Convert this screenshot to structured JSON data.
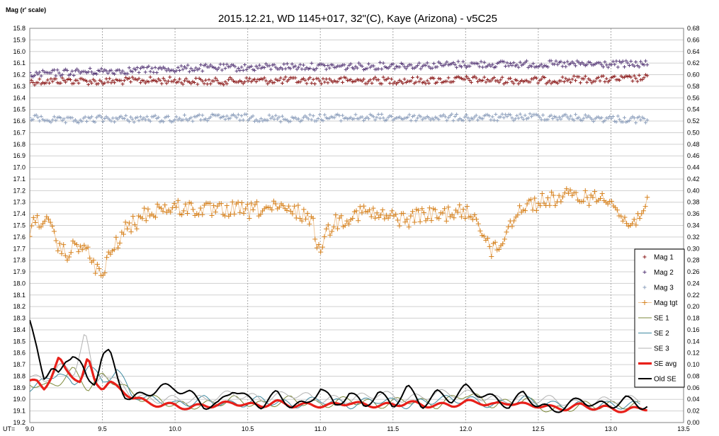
{
  "chart_data": {
    "type": "scatter",
    "title": "2015.12.21, WD 1145+017, 32\"(C), Kaye (Arizona) - v5C25",
    "ylabel_left": "Mag (r' scale)",
    "xlabel_prefix": "UT=",
    "grid": true,
    "legend_position": "right",
    "xlim": [
      9.0,
      13.5
    ],
    "ylim_left": [
      15.8,
      19.2
    ],
    "ylim_right": [
      0.0,
      0.68
    ],
    "y_left_inverted": true,
    "x_ticks": [
      "9.0",
      "9.5",
      "10.0",
      "10.5",
      "11.0",
      "11.5",
      "12.0",
      "12.5",
      "13.0",
      "13.5"
    ],
    "y_left_ticks": [
      "15.8",
      "15.9",
      "16.0",
      "16.1",
      "16.2",
      "16.3",
      "16.4",
      "16.5",
      "16.6",
      "16.7",
      "16.8",
      "16.9",
      "17.0",
      "17.1",
      "17.2",
      "17.3",
      "17.4",
      "17.5",
      "17.6",
      "17.7",
      "17.8",
      "17.9",
      "18.0",
      "18.1",
      "18.2",
      "18.3",
      "18.4",
      "18.5",
      "18.6",
      "18.7",
      "18.8",
      "18.9",
      "19.0",
      "19.1",
      "19.2"
    ],
    "y_right_ticks": [
      "0.68",
      "0.66",
      "0.64",
      "0.62",
      "0.60",
      "0.58",
      "0.56",
      "0.54",
      "0.52",
      "0.50",
      "0.48",
      "0.46",
      "0.44",
      "0.42",
      "0.40",
      "0.38",
      "0.36",
      "0.34",
      "0.32",
      "0.30",
      "0.28",
      "0.26",
      "0.24",
      "0.22",
      "0.20",
      "0.18",
      "0.16",
      "0.14",
      "0.12",
      "0.10",
      "0.08",
      "0.06",
      "0.04",
      "0.02",
      "0.00"
    ],
    "series": [
      {
        "name": "Mag 1",
        "color": "#8b1a1a",
        "kind": "markers",
        "axis": "left",
        "x": [
          9.0,
          9.25,
          9.5,
          9.75,
          10.0,
          10.25,
          10.5,
          10.75,
          11.0,
          11.25,
          11.5,
          11.75,
          12.0,
          12.25,
          12.5,
          12.75,
          13.0,
          13.25
        ],
        "y": [
          16.26,
          16.25,
          16.26,
          16.25,
          16.25,
          16.26,
          16.25,
          16.25,
          16.25,
          16.25,
          16.25,
          16.25,
          16.24,
          16.25,
          16.25,
          16.24,
          16.24,
          16.23
        ]
      },
      {
        "name": "Mag 2",
        "color": "#5a3d7a",
        "kind": "markers",
        "axis": "left",
        "x": [
          9.0,
          9.25,
          9.5,
          9.75,
          10.0,
          10.25,
          10.5,
          10.75,
          11.0,
          11.25,
          11.5,
          11.75,
          12.0,
          12.25,
          12.5,
          12.75,
          13.0,
          13.25
        ],
        "y": [
          16.2,
          16.18,
          16.17,
          16.16,
          16.15,
          16.14,
          16.14,
          16.13,
          16.13,
          16.13,
          16.12,
          16.12,
          16.11,
          16.11,
          16.11,
          16.11,
          16.11,
          16.11
        ]
      },
      {
        "name": "Mag 3",
        "color": "#8ea0bd",
        "kind": "markers",
        "axis": "left",
        "x": [
          9.0,
          9.25,
          9.5,
          9.75,
          10.0,
          10.25,
          10.5,
          10.75,
          11.0,
          11.25,
          11.5,
          11.75,
          12.0,
          12.25,
          12.5,
          12.75,
          13.0,
          13.25
        ],
        "y": [
          16.57,
          16.6,
          16.58,
          16.58,
          16.58,
          16.57,
          16.57,
          16.58,
          16.57,
          16.57,
          16.57,
          16.57,
          16.57,
          16.57,
          16.56,
          16.57,
          16.58,
          16.59
        ]
      },
      {
        "name": "Mag tgt",
        "color": "#d6821f",
        "line_color": "#f0c79a",
        "kind": "markers+line",
        "axis": "left",
        "x": [
          9.0,
          9.05,
          9.1,
          9.15,
          9.2,
          9.25,
          9.3,
          9.35,
          9.4,
          9.45,
          9.5,
          9.55,
          9.6,
          9.65,
          9.7,
          9.75,
          9.8,
          9.9,
          10.0,
          10.1,
          10.2,
          10.3,
          10.4,
          10.5,
          10.6,
          10.7,
          10.8,
          10.9,
          10.95,
          10.97,
          11.0,
          11.05,
          11.1,
          11.2,
          11.3,
          11.4,
          11.5,
          11.6,
          11.7,
          11.8,
          11.9,
          12.0,
          12.05,
          12.1,
          12.15,
          12.18,
          12.2,
          12.25,
          12.3,
          12.35,
          12.4,
          12.5,
          12.6,
          12.7,
          12.8,
          12.9,
          12.95,
          13.0,
          13.05,
          13.1,
          13.15,
          13.2,
          13.25
        ],
        "y": [
          17.55,
          17.45,
          17.45,
          17.55,
          17.7,
          17.75,
          17.7,
          17.65,
          17.75,
          17.85,
          17.95,
          17.75,
          17.65,
          17.55,
          17.5,
          17.45,
          17.4,
          17.35,
          17.35,
          17.35,
          17.37,
          17.38,
          17.36,
          17.38,
          17.35,
          17.36,
          17.38,
          17.4,
          17.5,
          17.62,
          17.68,
          17.55,
          17.47,
          17.42,
          17.38,
          17.42,
          17.43,
          17.45,
          17.4,
          17.42,
          17.38,
          17.4,
          17.4,
          17.5,
          17.62,
          17.75,
          17.7,
          17.65,
          17.5,
          17.38,
          17.33,
          17.3,
          17.27,
          17.25,
          17.25,
          17.27,
          17.24,
          17.25,
          17.4,
          17.47,
          17.5,
          17.38,
          17.28
        ]
      },
      {
        "name": "SE 1",
        "color": "#7e8a3c",
        "kind": "line",
        "axis": "right",
        "x": [
          9.0,
          9.1,
          9.2,
          9.3,
          9.4,
          9.5,
          9.6,
          9.7,
          9.8,
          9.9,
          10.0,
          10.2,
          10.4,
          10.6,
          10.8,
          11.0,
          11.2,
          11.4,
          11.6,
          11.8,
          12.0,
          12.2,
          12.4,
          12.6,
          12.8,
          13.0,
          13.2
        ],
        "y": [
          0.07,
          0.06,
          0.07,
          0.09,
          0.06,
          0.08,
          0.07,
          0.05,
          0.04,
          0.04,
          0.03,
          0.03,
          0.04,
          0.03,
          0.04,
          0.03,
          0.04,
          0.03,
          0.04,
          0.03,
          0.05,
          0.03,
          0.04,
          0.02,
          0.03,
          0.03,
          0.03
        ]
      },
      {
        "name": "SE 2",
        "color": "#3f8aa0",
        "kind": "line",
        "axis": "right",
        "x": [
          9.0,
          9.1,
          9.2,
          9.3,
          9.4,
          9.5,
          9.6,
          9.7,
          9.8,
          9.9,
          10.0,
          10.2,
          10.4,
          10.6,
          10.8,
          11.0,
          11.2,
          11.4,
          11.6,
          11.8,
          12.0,
          12.2,
          12.4,
          12.6,
          12.8,
          13.0,
          13.2
        ],
        "y": [
          0.06,
          0.07,
          0.09,
          0.06,
          0.1,
          0.07,
          0.09,
          0.05,
          0.04,
          0.04,
          0.03,
          0.04,
          0.03,
          0.04,
          0.03,
          0.04,
          0.03,
          0.04,
          0.03,
          0.04,
          0.04,
          0.03,
          0.04,
          0.03,
          0.03,
          0.03,
          0.03
        ]
      },
      {
        "name": "SE 3",
        "color": "#b3b3b3",
        "kind": "line",
        "axis": "right",
        "x": [
          9.0,
          9.1,
          9.2,
          9.3,
          9.38,
          9.45,
          9.5,
          9.6,
          9.7,
          9.8,
          9.9,
          10.0,
          10.2,
          10.4,
          10.6,
          10.8,
          11.0,
          11.2,
          11.4,
          11.6,
          11.8,
          12.0,
          12.2,
          12.4,
          12.6,
          12.8,
          13.0,
          13.2
        ],
        "y": [
          0.08,
          0.07,
          0.1,
          0.08,
          0.16,
          0.06,
          0.09,
          0.07,
          0.05,
          0.04,
          0.04,
          0.04,
          0.04,
          0.05,
          0.04,
          0.05,
          0.04,
          0.04,
          0.05,
          0.04,
          0.05,
          0.05,
          0.04,
          0.04,
          0.04,
          0.03,
          0.04,
          0.04
        ]
      },
      {
        "name": "SE avg",
        "color": "#e8201a",
        "kind": "thick-line",
        "axis": "right",
        "x": [
          9.0,
          9.05,
          9.1,
          9.15,
          9.2,
          9.25,
          9.3,
          9.35,
          9.4,
          9.45,
          9.5,
          9.55,
          9.6,
          9.7,
          9.8,
          9.9,
          10.0,
          10.1,
          10.2,
          10.3,
          10.4,
          10.5,
          10.6,
          10.7,
          10.8,
          10.9,
          11.0,
          11.1,
          11.2,
          11.3,
          11.4,
          11.5,
          11.6,
          11.7,
          11.8,
          11.9,
          12.0,
          12.1,
          12.2,
          12.3,
          12.4,
          12.5,
          12.6,
          12.7,
          12.8,
          12.9,
          13.0,
          13.1,
          13.2,
          13.25
        ],
        "y": [
          0.07,
          0.07,
          0.06,
          0.08,
          0.11,
          0.09,
          0.08,
          0.07,
          0.11,
          0.07,
          0.06,
          0.07,
          0.06,
          0.045,
          0.035,
          0.03,
          0.03,
          0.025,
          0.03,
          0.03,
          0.035,
          0.03,
          0.03,
          0.035,
          0.03,
          0.03,
          0.03,
          0.03,
          0.035,
          0.03,
          0.03,
          0.03,
          0.035,
          0.03,
          0.03,
          0.03,
          0.035,
          0.035,
          0.03,
          0.035,
          0.03,
          0.03,
          0.025,
          0.025,
          0.03,
          0.025,
          0.025,
          0.02,
          0.025,
          0.025
        ]
      },
      {
        "name": "Old SE",
        "color": "#000000",
        "kind": "line",
        "axis": "right",
        "x": [
          9.0,
          9.05,
          9.1,
          9.15,
          9.2,
          9.25,
          9.3,
          9.35,
          9.4,
          9.45,
          9.5,
          9.55,
          9.6,
          9.65,
          9.7,
          9.8,
          9.9,
          10.0,
          10.1,
          10.2,
          10.3,
          10.4,
          10.5,
          10.6,
          10.7,
          10.8,
          10.9,
          11.0,
          11.1,
          11.2,
          11.3,
          11.4,
          11.5,
          11.6,
          11.7,
          11.8,
          11.9,
          12.0,
          12.1,
          12.2,
          12.3,
          12.4,
          12.5,
          12.6,
          12.7,
          12.8,
          12.9,
          13.0,
          13.1,
          13.2,
          13.25
        ],
        "y": [
          0.17,
          0.13,
          0.08,
          0.09,
          0.08,
          0.11,
          0.12,
          0.1,
          0.07,
          0.07,
          0.12,
          0.12,
          0.08,
          0.05,
          0.04,
          0.05,
          0.06,
          0.06,
          0.05,
          0.03,
          0.03,
          0.06,
          0.04,
          0.03,
          0.05,
          0.03,
          0.03,
          0.06,
          0.03,
          0.05,
          0.03,
          0.05,
          0.03,
          0.06,
          0.03,
          0.05,
          0.04,
          0.06,
          0.05,
          0.04,
          0.03,
          0.05,
          0.03,
          0.02,
          0.03,
          0.04,
          0.03,
          0.03,
          0.04,
          0.03,
          0.03
        ]
      }
    ]
  }
}
